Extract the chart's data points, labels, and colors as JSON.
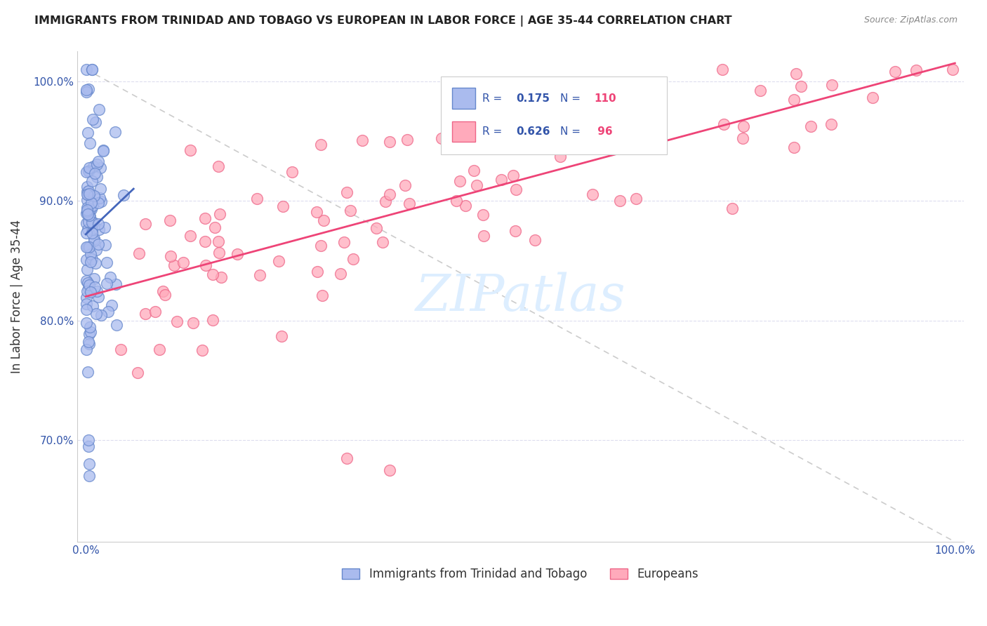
{
  "title": "IMMIGRANTS FROM TRINIDAD AND TOBAGO VS EUROPEAN IN LABOR FORCE | AGE 35-44 CORRELATION CHART",
  "source": "Source: ZipAtlas.com",
  "ylabel": "In Labor Force | Age 35-44",
  "xlim": [
    -0.01,
    1.01
  ],
  "ylim": [
    0.615,
    1.025
  ],
  "yticks": [
    0.7,
    0.8,
    0.9,
    1.0
  ],
  "ytick_labels": [
    "70.0%",
    "80.0%",
    "90.0%",
    "100.0%"
  ],
  "xticks": [
    0.0,
    0.1,
    0.2,
    0.3,
    0.4,
    0.5,
    0.6,
    0.7,
    0.8,
    0.9,
    1.0
  ],
  "xtick_labels": [
    "0.0%",
    "",
    "",
    "",
    "",
    "",
    "",
    "",
    "",
    "",
    "100.0%"
  ],
  "blue_face": "#aabbee",
  "blue_edge": "#6688cc",
  "pink_face": "#ffaabb",
  "pink_edge": "#ee6688",
  "trend_blue": "#4466bb",
  "trend_pink": "#ee4477",
  "diagonal_color": "#cccccc",
  "R_blue": 0.175,
  "N_blue": 110,
  "R_pink": 0.626,
  "N_pink": 96,
  "legend_label_color": "#3355aa",
  "legend_N_color": "#ee4477",
  "axis_tick_color": "#3355aa",
  "title_color": "#222222",
  "source_color": "#888888",
  "watermark": "ZIPatlas",
  "watermark_color": "#ddeeff",
  "grid_color": "#ddddee",
  "bottom_legend_label1": "Immigrants from Trinidad and Tobago",
  "bottom_legend_label2": "Europeans"
}
